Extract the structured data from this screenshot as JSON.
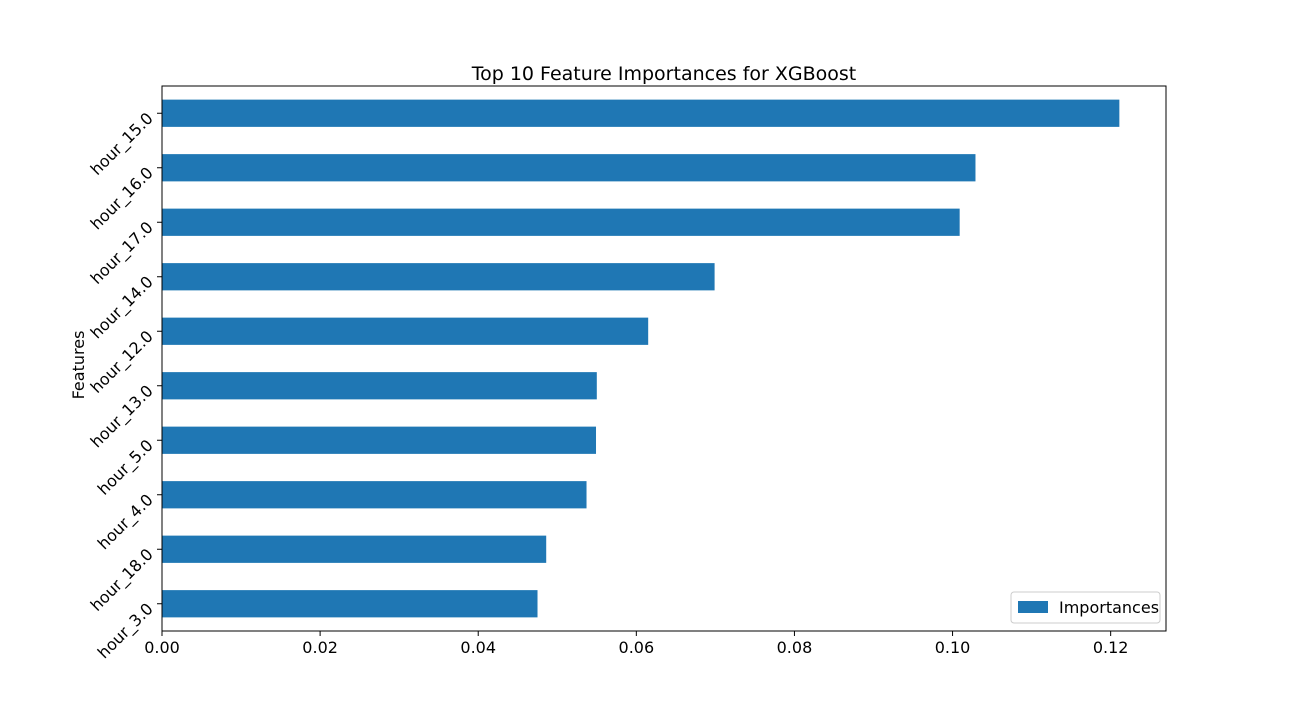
{
  "chart_data": {
    "type": "bar",
    "orientation": "horizontal",
    "title": "Top 10 Feature Importances for XGBoost",
    "xlabel": "",
    "ylabel": "Features",
    "categories": [
      "hour_15.0",
      "hour_16.0",
      "hour_17.0",
      "hour_14.0",
      "hour_12.0",
      "hour_13.0",
      "hour_5.0",
      "hour_4.0",
      "hour_18.0",
      "hour_3.0"
    ],
    "series": [
      {
        "name": "Importances",
        "color": "#1f77b4",
        "values": [
          0.1211,
          0.1029,
          0.1009,
          0.0699,
          0.0615,
          0.055,
          0.0549,
          0.0537,
          0.0486,
          0.0475
        ]
      }
    ],
    "xlim": [
      0,
      0.127
    ],
    "xticks": [
      0.0,
      0.02,
      0.04,
      0.06,
      0.08,
      0.1,
      0.12
    ],
    "xtick_labels": [
      "0.00",
      "0.02",
      "0.04",
      "0.06",
      "0.08",
      "0.10",
      "0.12"
    ],
    "grid": false,
    "legend_position": "bottom-right"
  }
}
